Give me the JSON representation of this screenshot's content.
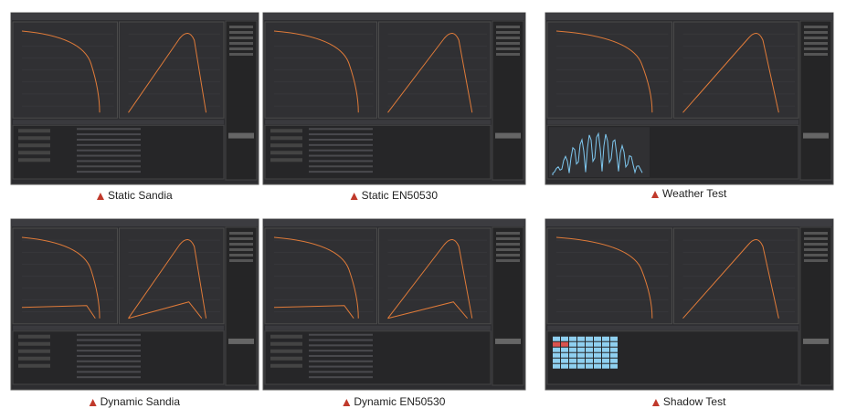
{
  "panels": [
    {
      "caption": "Static Sandia"
    },
    {
      "caption": "Static EN50530"
    },
    {
      "caption": "Weather Test"
    },
    {
      "caption": "Dynamic Sandia"
    },
    {
      "caption": "Dynamic EN50530"
    },
    {
      "caption": "Shadow Test"
    }
  ]
}
